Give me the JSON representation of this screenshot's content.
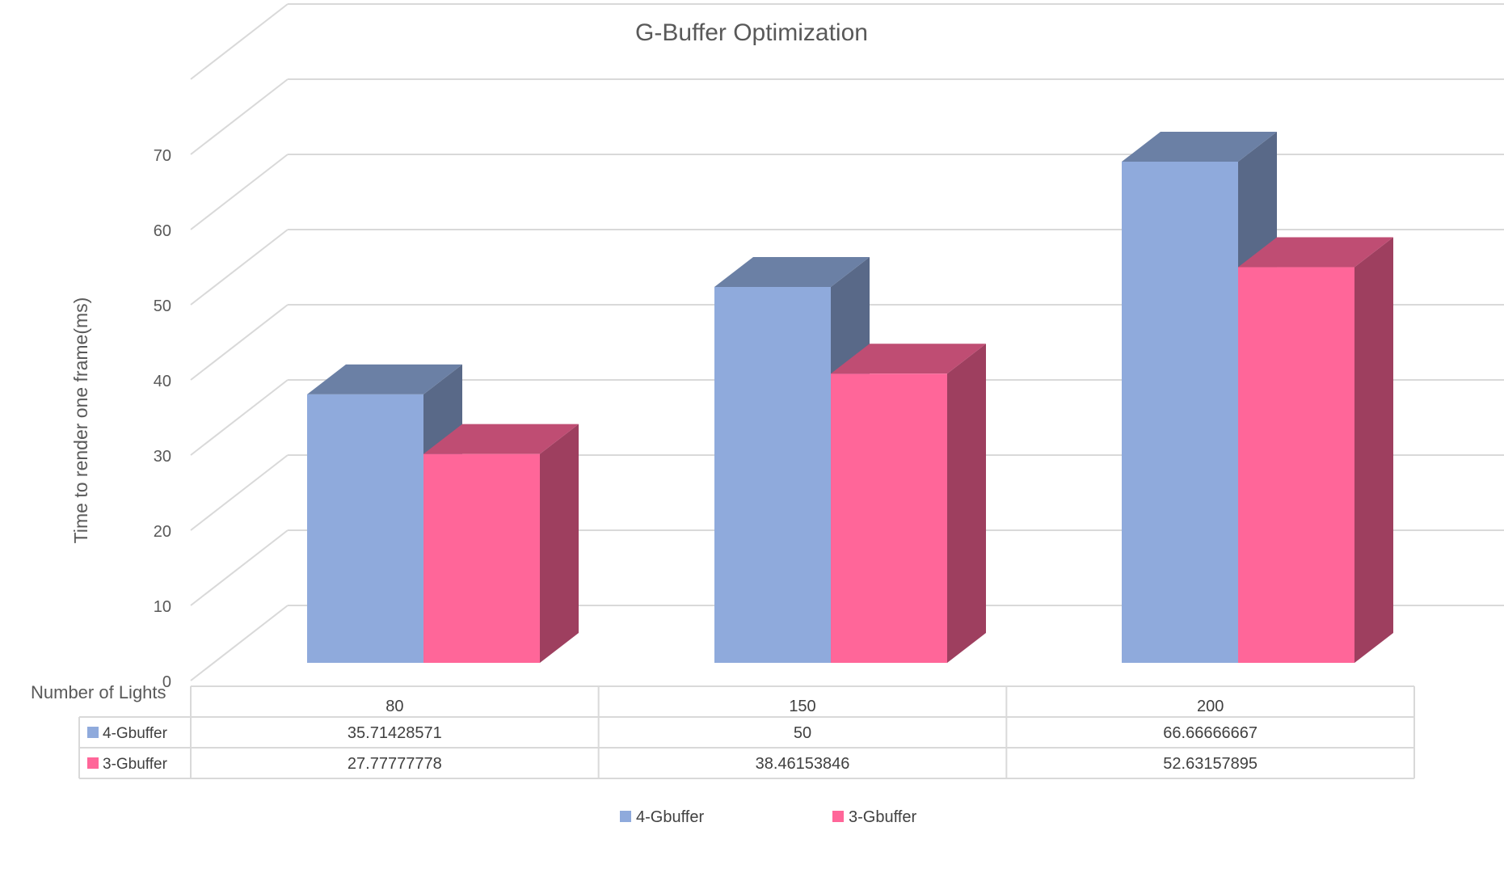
{
  "chart_data": {
    "type": "bar",
    "title": "G-Buffer Optimization",
    "xlabel": "Number of Lights",
    "ylabel": "Time to render one frame(ms)",
    "ylim": [
      0,
      70
    ],
    "yticks": [
      0,
      10,
      20,
      30,
      40,
      50,
      60,
      70
    ],
    "categories": [
      "80",
      "150",
      "200"
    ],
    "grid": true,
    "legend": "bottom",
    "series": [
      {
        "name": "4-Gbuffer",
        "color": "#8faadc",
        "values": [
          35.71428571,
          50,
          66.66666667
        ],
        "table_values": [
          "35.71428571",
          "50",
          "66.66666667"
        ]
      },
      {
        "name": "3-Gbuffer",
        "color": "#ff6699",
        "values": [
          27.77777778,
          38.46153846,
          52.63157895
        ],
        "table_values": [
          "27.77777778",
          "38.46153846",
          "52.63157895"
        ]
      }
    ]
  }
}
